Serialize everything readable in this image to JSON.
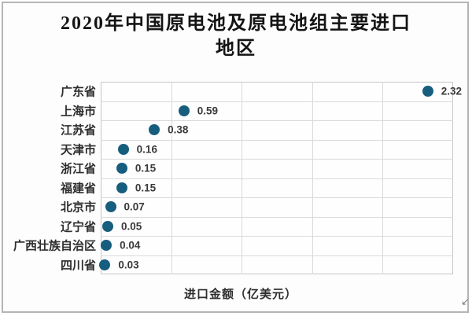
{
  "title": {
    "line1": "2020年中国原电池及原电池组主要进口",
    "line2": "地区"
  },
  "axis": {
    "xlabel": "进口金额（亿美元）"
  },
  "chart_data": {
    "type": "scatter",
    "subtype": "horizontal-dot-plot",
    "title": "2020年中国原电池及原电池组主要进口地区",
    "xlabel": "进口金额（亿美元）",
    "ylabel": "",
    "categories": [
      "广东省",
      "上海市",
      "江苏省",
      "天津市",
      "浙江省",
      "福建省",
      "北京市",
      "辽宁省",
      "广西壮族自治区",
      "四川省"
    ],
    "values": [
      2.32,
      0.59,
      0.38,
      0.16,
      0.15,
      0.15,
      0.07,
      0.05,
      0.04,
      0.03
    ],
    "value_labels": [
      "2.32",
      "0.59",
      "0.38",
      "0.16",
      "0.15",
      "0.15",
      "0.07",
      "0.05",
      "0.04",
      "0.03"
    ],
    "xlim": [
      0,
      2.5
    ],
    "gridline_interval": 0.5,
    "grid": true,
    "legend_position": "none",
    "data_labels": "right-of-marker"
  },
  "colors": {
    "marker": "#175d7e",
    "gridline": "#dadada",
    "plot_border": "#c6c6c6",
    "card_border": "#b5b5b5",
    "background": "#fdfdfd",
    "title_text": "#141414",
    "label_text": "#2d2d2d"
  },
  "decorations": {
    "corner_arrow": "↙"
  }
}
